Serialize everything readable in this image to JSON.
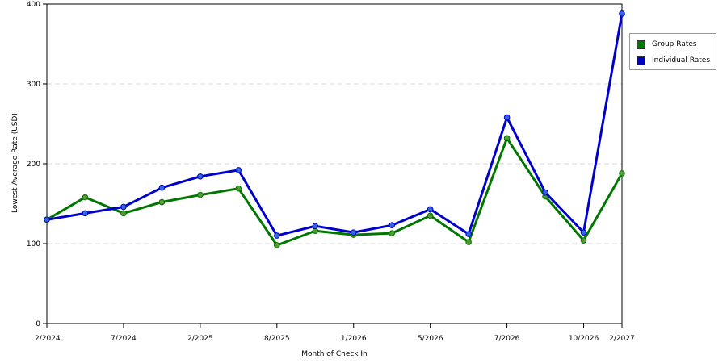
{
  "chart_data": {
    "type": "line",
    "xlabel": "Month of Check In",
    "ylabel": "Lowest Average Rate (USD)",
    "ylim": [
      0,
      400
    ],
    "yticks": [
      0,
      100,
      200,
      300,
      400
    ],
    "x_tick_labels": [
      "2/2024",
      "7/2024",
      "2/2025",
      "8/2025",
      "1/2026",
      "5/2026",
      "7/2026",
      "10/2026",
      "2/2027"
    ],
    "x_tick_positions": [
      0,
      2,
      4,
      6,
      8,
      10,
      12,
      14,
      15
    ],
    "point_count": 16,
    "grid": "horizontal-dashed",
    "legend_position": "top-right",
    "series": [
      {
        "name": "Group Rates",
        "color": "#007700",
        "marker_color": "#559933",
        "values": [
          130,
          158,
          138,
          152,
          161,
          169,
          98,
          116,
          111,
          113,
          135,
          102,
          232,
          159,
          104,
          188
        ]
      },
      {
        "name": "Individual Rates",
        "color": "#0000CC",
        "marker_color": "#3366DD",
        "values": [
          130,
          138,
          146,
          170,
          184,
          192,
          110,
          122,
          114,
          123,
          143,
          112,
          258,
          164,
          114,
          388
        ]
      }
    ]
  }
}
